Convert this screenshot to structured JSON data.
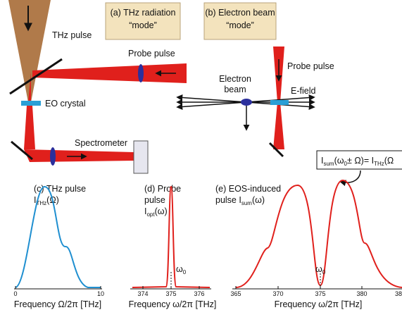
{
  "panel_a": {
    "title": "(a) THz radiation",
    "subtitle": "“mode”",
    "thz_pulse": "THz pulse",
    "probe_pulse": "Probe pulse",
    "eo_crystal": "EO crystal",
    "spectrometer": "Spectrometer"
  },
  "panel_b": {
    "title": "(b) Electron beam",
    "subtitle": "“mode”",
    "probe_pulse": "Probe pulse",
    "electron_beam": [
      "Electron",
      "beam"
    ],
    "e_field": "E-field"
  },
  "formula": {
    "lhs": "I",
    "lhs_sub": "sum",
    "lhs_arg": "(ω",
    "lhs_arg_sub": "0",
    "lhs_rest": "± Ω)= I",
    "rhs_sub": "THz",
    "rhs_arg": "(Ω"
  },
  "panel_c": {
    "title": "(c) THz pulse",
    "symbol": "I",
    "symbol_sub": "THz",
    "symbol_arg": "(Ω)",
    "xticks": [
      "0",
      "10"
    ],
    "xlabel": "Frequency Ω/2π [THz]"
  },
  "panel_d": {
    "title": [
      "(d) Probe",
      "pulse"
    ],
    "symbol": "I",
    "symbol_sub": "opt",
    "symbol_arg": "(ω)",
    "marker": "ω",
    "marker_sub": "0",
    "xticks": [
      "374",
      "375",
      "376"
    ],
    "xlabel": "Frequency ω/2π [THz]"
  },
  "panel_e": {
    "title": [
      "(e) EOS-induced",
      "pulse I"
    ],
    "symbol_sub": "sum",
    "symbol_arg": "(ω)",
    "marker": "ω",
    "marker_sub": "0",
    "xticks": [
      "365",
      "370",
      "375",
      "380",
      "38"
    ],
    "xlabel": "Frequency ω/2π [THz]"
  }
}
